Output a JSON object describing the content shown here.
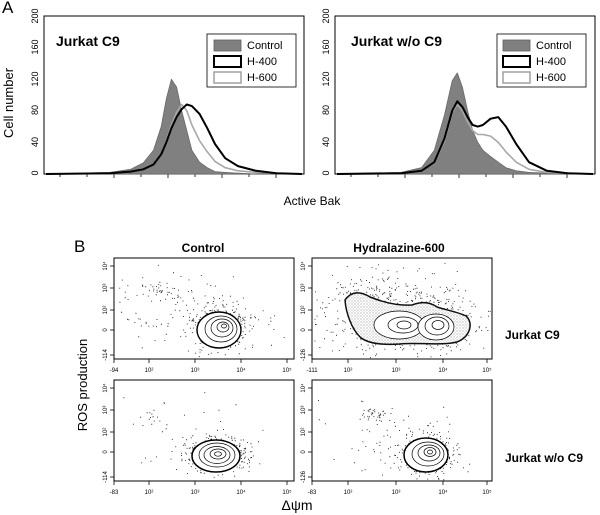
{
  "panel_labels": {
    "a": "A",
    "b": "B"
  },
  "axis_labels": {
    "cell_number": "Cell number",
    "active_bak": "Active Bak",
    "ros": "ROS production",
    "delta_psi": "Δψm"
  },
  "column_titles": [
    "Control",
    "Hydralazine-600"
  ],
  "row_titles": [
    "Jurkat C9",
    "Jurkat w/o C9"
  ],
  "histogram_y_ticks": [
    "0",
    "40",
    "80",
    "120",
    "160",
    "200"
  ],
  "legend": [
    {
      "label": "Control",
      "style": "filled-gray"
    },
    {
      "label": "H-400",
      "style": "black-outline"
    },
    {
      "label": "H-600",
      "style": "gray-outline"
    }
  ],
  "contour_ticks": {
    "x_top": [
      "-94",
      "10²",
      "10³",
      "10⁴",
      "10⁵"
    ],
    "x_top_right": [
      "-111",
      "10²",
      "10³",
      "10⁴",
      "10⁵"
    ],
    "x_bottom": [
      "-83",
      "10²",
      "10³",
      "10⁴",
      "10⁵"
    ],
    "x_bottom_right": [
      "-83",
      "10²",
      "10³",
      "10⁴",
      "10⁵"
    ],
    "y_left": [
      "-114",
      "0",
      "10²",
      "10³",
      "10⁴"
    ],
    "y_right": [
      "-126",
      "0",
      "10²",
      "10³",
      "10⁴"
    ]
  },
  "chart_data": [
    {
      "type": "area",
      "title": "Jurkat C9",
      "xlabel": "Active Bak",
      "ylabel": "Cell number",
      "ylim": [
        0,
        200
      ],
      "x": [
        0.0,
        0.25,
        0.33,
        0.38,
        0.42,
        0.45,
        0.47,
        0.49,
        0.51,
        0.53,
        0.55,
        0.57,
        0.6,
        0.63,
        0.66,
        0.7,
        0.75,
        0.82,
        0.9,
        1.0
      ],
      "series": [
        {
          "name": "Control",
          "values": [
            0,
            2,
            6,
            14,
            30,
            60,
            95,
            120,
            110,
            80,
            55,
            30,
            15,
            8,
            3,
            2,
            1,
            0,
            0,
            0
          ]
        },
        {
          "name": "H-400",
          "values": [
            0,
            1,
            3,
            6,
            12,
            25,
            40,
            58,
            72,
            82,
            88,
            86,
            76,
            58,
            38,
            20,
            10,
            4,
            1,
            0
          ]
        },
        {
          "name": "H-600",
          "values": [
            0,
            1,
            3,
            6,
            12,
            25,
            42,
            62,
            78,
            88,
            80,
            62,
            42,
            28,
            16,
            8,
            4,
            2,
            1,
            0
          ]
        }
      ]
    },
    {
      "type": "area",
      "title": "Jurkat w/o C9",
      "xlabel": "Active Bak",
      "ylabel": "Cell number",
      "ylim": [
        0,
        200
      ],
      "x": [
        0.0,
        0.25,
        0.33,
        0.38,
        0.42,
        0.45,
        0.47,
        0.49,
        0.51,
        0.53,
        0.55,
        0.57,
        0.6,
        0.63,
        0.66,
        0.7,
        0.75,
        0.82,
        0.9,
        1.0
      ],
      "series": [
        {
          "name": "Control",
          "values": [
            0,
            2,
            8,
            30,
            75,
            118,
            128,
            110,
            80,
            55,
            40,
            30,
            22,
            15,
            8,
            4,
            2,
            1,
            0,
            0
          ]
        },
        {
          "name": "H-400",
          "values": [
            0,
            1,
            4,
            15,
            45,
            80,
            92,
            85,
            72,
            62,
            60,
            62,
            70,
            72,
            60,
            38,
            15,
            4,
            1,
            0
          ]
        },
        {
          "name": "H-600",
          "values": [
            0,
            1,
            4,
            14,
            42,
            78,
            88,
            80,
            66,
            55,
            50,
            50,
            48,
            40,
            28,
            15,
            6,
            2,
            1,
            0
          ]
        }
      ]
    }
  ]
}
